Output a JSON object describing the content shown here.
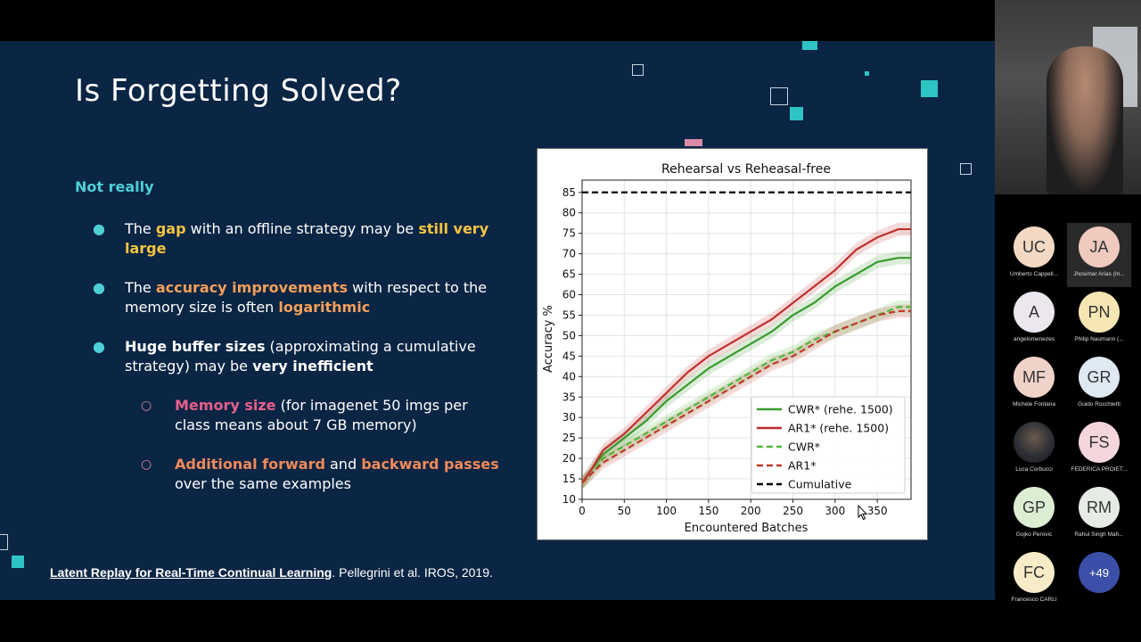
{
  "slide": {
    "title": "Is Forgetting Solved?",
    "subtitle": "Not really",
    "bullets": [
      {
        "parts": [
          "The ",
          "gap",
          " with an offline strategy may be ",
          "still very large"
        ]
      },
      {
        "parts": [
          "The ",
          "accuracy improvements",
          " with respect to the memory size is often ",
          "logarithmic"
        ]
      },
      {
        "parts": [
          "Huge buffer sizes",
          " (approximating a cumulative strategy) may be ",
          "very inefficient"
        ]
      },
      {
        "parts": [
          "Memory size",
          " (for imagenet 50 imgs per class means about 7 GB memory)"
        ]
      },
      {
        "parts": [
          "Additional forward",
          " and ",
          "backward passes",
          " over the same examples"
        ]
      }
    ],
    "reference": {
      "link_text": "Latent Replay for Real-Time Continual Learning",
      "rest": ". Pellegrini et al. IROS, 2019."
    }
  },
  "chart_data": {
    "type": "line",
    "title": "Rehearsal vs Reheasal-free",
    "xlabel": "Encountered Batches",
    "ylabel": "Accuracy %",
    "xlim": [
      0,
      390
    ],
    "ylim": [
      10,
      88
    ],
    "xticks": [
      0,
      50,
      100,
      150,
      200,
      250,
      300,
      350
    ],
    "yticks": [
      10,
      15,
      20,
      25,
      30,
      35,
      40,
      45,
      50,
      55,
      60,
      65,
      70,
      75,
      80,
      85
    ],
    "grid": true,
    "legend_position": "lower-right",
    "x": [
      0,
      10,
      25,
      50,
      75,
      100,
      125,
      150,
      175,
      200,
      225,
      250,
      275,
      300,
      325,
      350,
      375,
      390
    ],
    "series": [
      {
        "name": "CWR* (rehe. 1500)",
        "color": "#3a9a2f",
        "dash": "solid",
        "values": [
          14,
          17,
          21,
          25,
          29,
          34,
          38,
          42,
          45,
          48,
          51,
          55,
          58,
          62,
          65,
          68,
          69,
          69
        ]
      },
      {
        "name": "AR1* (rehe. 1500)",
        "color": "#c0302e",
        "dash": "solid",
        "values": [
          14,
          17,
          22,
          26,
          31,
          36,
          41,
          45,
          48,
          51,
          54,
          58,
          62,
          66,
          71,
          74,
          76,
          76
        ]
      },
      {
        "name": "CWR*",
        "color": "#4db83a",
        "dash": "dashed",
        "values": [
          14,
          16,
          20,
          23,
          26,
          29,
          32,
          35,
          38,
          41,
          44,
          46,
          49,
          51,
          53,
          55,
          57,
          57
        ]
      },
      {
        "name": "AR1*",
        "color": "#c0392b",
        "dash": "dashed",
        "values": [
          14,
          16,
          19,
          22,
          25,
          28,
          31,
          34,
          37,
          40,
          43,
          45,
          48,
          51,
          53,
          55,
          56,
          56
        ]
      },
      {
        "name": "Cumulative",
        "color": "#000000",
        "dash": "dashed",
        "values": [
          85,
          85,
          85,
          85,
          85,
          85,
          85,
          85,
          85,
          85,
          85,
          85,
          85,
          85,
          85,
          85,
          85,
          85
        ]
      }
    ]
  },
  "participants": [
    {
      "initials": "UC",
      "name": "Umberto Cappell...",
      "color": "#f3d9c4"
    },
    {
      "initials": "JA",
      "name": "Jhosimar Arias (In...",
      "color": "#f0c9bf",
      "active": true
    },
    {
      "initials": "A",
      "name": "angelomenezes",
      "color": "#ece6ef"
    },
    {
      "initials": "PN",
      "name": "Philip Naumann (...",
      "color": "#f5e6b3"
    },
    {
      "initials": "MF",
      "name": "Michele Fontana",
      "color": "#f0d3c8"
    },
    {
      "initials": "GR",
      "name": "Guido Rocchietti",
      "color": "#dfe9f3"
    },
    {
      "initials": "",
      "name": "Luca Corbucci",
      "color": "#3a3f48",
      "photo": true
    },
    {
      "initials": "FS",
      "name": "FEDERICA PROIET...",
      "color": "#f5d6dc"
    },
    {
      "initials": "GP",
      "name": "Gojko Perovic",
      "color": "#dbeed3"
    },
    {
      "initials": "RM",
      "name": "Rahul Singh Mah...",
      "color": "#e6ece3"
    },
    {
      "initials": "FC",
      "name": "Francesco CARLI",
      "color": "#f7ecc7"
    },
    {
      "initials": "+49",
      "name": "",
      "color": "#3b4fa8",
      "more": true
    }
  ]
}
